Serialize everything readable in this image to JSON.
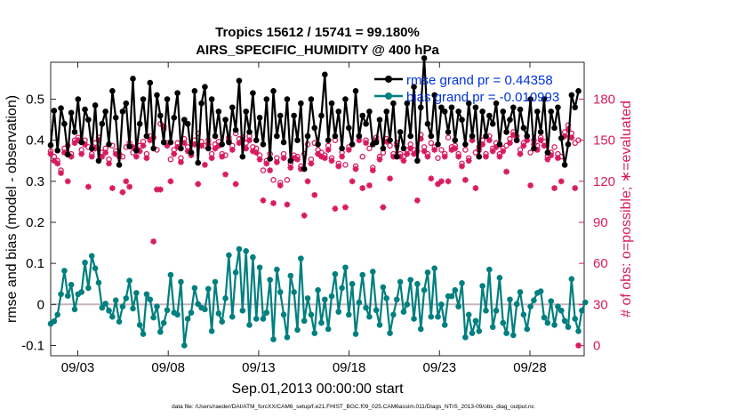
{
  "chart_data": {
    "type": "line",
    "title_line1": "Tropics 15612 / 15741 = 99.180%",
    "title_line2": "AIRS_SPECIFIC_HUMIDITY @ 400 hPa",
    "xlabel": "Sep.01,2013 00:00:00 start",
    "ylabel_left": "rmse and bias (model - observation)",
    "ylabel_right": "# of obs: o=possible; ∗=evaluated",
    "footer": "data file: /Users/raeder/DAI/ATM_forcXX/CAM6_setup/f.e21.FHIST_BGC.f09_025.CAM6assim.011/Diags_NTrS_2013-09/obs_diag_output.nc",
    "x_tick_labels": [
      "09/03",
      "09/08",
      "09/13",
      "09/18",
      "09/23",
      "09/28"
    ],
    "x_tick_values": [
      3,
      8,
      13,
      18,
      23,
      28
    ],
    "xlim": [
      1.5,
      31.0
    ],
    "y_left_ticks": [
      "0.5",
      "0.4",
      "0.3",
      "0.2",
      "0.1",
      "0",
      "-0.1"
    ],
    "y_left_values": [
      0.5,
      0.4,
      0.3,
      0.2,
      0.1,
      0,
      -0.1
    ],
    "ylim_left": [
      -0.125,
      0.59
    ],
    "y_right_ticks": [
      "180",
      "150",
      "120",
      "90",
      "60",
      "30",
      "0"
    ],
    "y_right_values": [
      180,
      150,
      120,
      90,
      60,
      30,
      0
    ],
    "ylim_right": [
      -7.5,
      207
    ],
    "legend": {
      "position": "top-right",
      "entries": [
        "rmse grand pr = 0.44358",
        "bias grand pr = -0.010993"
      ]
    },
    "colors": {
      "rmse": "#000000",
      "bias": "#007f7f",
      "obs": "#d81b60",
      "legend_text": "#0033dd",
      "zero_line": "#c8b4be"
    },
    "series": [
      {
        "name": "rmse",
        "values": [
          0.388,
          0.472,
          0.375,
          0.478,
          0.44,
          0.365,
          0.467,
          0.42,
          0.5,
          0.395,
          0.475,
          0.45,
          0.38,
          0.485,
          0.35,
          0.44,
          0.47,
          0.39,
          0.52,
          0.455,
          0.34,
          0.47,
          0.49,
          0.385,
          0.55,
          0.375,
          0.44,
          0.5,
          0.41,
          0.54,
          0.38,
          0.51,
          0.46,
          0.395,
          0.5,
          0.395,
          0.455,
          0.515,
          0.38,
          0.45,
          0.44,
          0.37,
          0.52,
          0.345,
          0.49,
          0.53,
          0.38,
          0.5,
          0.41,
          0.47,
          0.39,
          0.45,
          0.395,
          0.48,
          0.425,
          0.545,
          0.36,
          0.47,
          0.42,
          0.515,
          0.4,
          0.455,
          0.39,
          0.5,
          0.355,
          0.52,
          0.41,
          0.46,
          0.395,
          0.5,
          0.35,
          0.46,
          0.4,
          0.49,
          0.33,
          0.41,
          0.5,
          0.43,
          0.39,
          0.46,
          0.56,
          0.4,
          0.49,
          0.41,
          0.47,
          0.38,
          0.5,
          0.43,
          0.39,
          0.52,
          0.41,
          0.46,
          0.44,
          0.47,
          0.39,
          0.395,
          0.45,
          0.38,
          0.47,
          0.4,
          0.49,
          0.36,
          0.42,
          0.38,
          0.49,
          0.41,
          0.53,
          0.35,
          0.48,
          0.6,
          0.44,
          0.41,
          0.51,
          0.39,
          0.48,
          0.47,
          0.42,
          0.48,
          0.4,
          0.47,
          0.45,
          0.39,
          0.49,
          0.41,
          0.48,
          0.36,
          0.47,
          0.41,
          0.46,
          0.44,
          0.49,
          0.39,
          0.47,
          0.42,
          0.45,
          0.48,
          0.4,
          0.475,
          0.43,
          0.41,
          0.5,
          0.38,
          0.47,
          0.42,
          0.5,
          0.37,
          0.47,
          0.43,
          0.48,
          0.405,
          0.34,
          0.39,
          0.51,
          0.48,
          0.52
        ],
        "x_start": 1.5,
        "x_step": 0.1895
      },
      {
        "name": "bias",
        "values": [
          -0.047,
          -0.041,
          -0.025,
          0.025,
          0.082,
          0.021,
          0.048,
          -0.012,
          0.025,
          0.03,
          0.102,
          0.04,
          0.118,
          0.088,
          0.053,
          -0.008,
          0.002,
          -0.015,
          -0.03,
          0.01,
          -0.042,
          -0.005,
          0.015,
          0.058,
          -0.01,
          0.028,
          -0.05,
          -0.072,
          0.025,
          0.012,
          -0.032,
          -0.005,
          -0.067,
          -0.045,
          -0.014,
          0.072,
          -0.02,
          -0.025,
          0.055,
          -0.1,
          -0.035,
          -0.02,
          0.04,
          0.001,
          -0.008,
          -0.012,
          0.038,
          -0.065,
          0.055,
          -0.022,
          -0.042,
          0.015,
          0.12,
          -0.03,
          0.078,
          0.135,
          -0.015,
          0.13,
          -0.05,
          0.115,
          -0.035,
          0.09,
          -0.035,
          -0.02,
          0.06,
          -0.085,
          0.085,
          0.03,
          -0.025,
          -0.08,
          0.07,
          0.03,
          -0.062,
          0.112,
          -0.04,
          0.015,
          -0.025,
          -0.07,
          0.035,
          -0.045,
          0.012,
          -0.06,
          0.02,
          0.074,
          -0.018,
          0.04,
          0.09,
          -0.025,
          0.05,
          -0.072,
          0.005,
          0.072,
          -0.008,
          -0.03,
          0.08,
          -0.014,
          -0.05,
          0.042,
          0.015,
          -0.07,
          -0.025,
          0.012,
          0.055,
          -0.018,
          0.0,
          0.06,
          -0.035,
          0.05,
          -0.06,
          0.035,
          0.078,
          -0.03,
          0.088,
          -0.03,
          0.0,
          -0.05,
          0.02,
          0.02,
          0.035,
          -0.005,
          0.052,
          -0.08,
          -0.025,
          -0.07,
          -0.04,
          -0.065,
          0.045,
          -0.015,
          0.085,
          -0.055,
          -0.015,
          0.065,
          -0.045,
          -0.07,
          0.012,
          -0.075,
          0.001,
          0.03,
          -0.025,
          -0.06,
          -0.005,
          0.01,
          0.028,
          0.032,
          -0.032,
          -0.045,
          0.008,
          -0.05,
          -0.005,
          -0.015,
          -0.04,
          -0.055,
          0.062,
          -0.035,
          -0.065,
          -0.015,
          0.005
        ],
        "x_start": 1.5,
        "x_step": 0.1895
      },
      {
        "name": "obs_possible",
        "values": [
          142,
          138,
          135,
          128,
          144,
          146,
          140,
          150,
          152,
          143,
          150,
          145,
          140,
          148,
          152,
          141,
          144,
          136,
          146,
          142,
          140,
          138,
          145,
          148,
          141,
          144,
          146,
          149,
          140,
          153,
          152,
          143,
          162,
          158,
          148,
          136,
          143,
          148,
          137,
          151,
          145,
          141,
          150,
          155,
          149,
          146,
          150,
          140,
          147,
          149,
          140,
          139,
          152,
          146,
          155,
          151,
          152,
          148,
          153,
          145,
          144,
          139,
          128,
          135,
          140,
          121,
          137,
          119,
          140,
          121,
          133,
          139,
          138,
          131,
          140,
          147,
          136,
          148,
          143,
          141,
          139,
          146,
          137,
          150,
          133,
          141,
          132,
          145,
          147,
          131,
          153,
          138,
          150,
          144,
          130,
          152,
          138,
          141,
          151,
          146,
          140,
          148,
          140,
          138,
          143,
          147,
          143,
          142,
          154,
          145,
          140,
          148,
          145,
          137,
          143,
          140,
          152,
          145,
          146,
          140,
          133,
          143,
          137,
          153,
          141,
          145,
          150,
          140,
          153,
          144,
          148,
          140,
          144,
          146,
          151,
          156,
          153,
          143,
          148,
          153,
          141,
          150,
          146,
          152,
          149,
          138,
          141,
          145,
          140,
          138,
          156,
          161,
          155,
          148,
          150
        ],
        "x_start": 1.5,
        "x_step": 0.1895
      },
      {
        "name": "obs_evaluated",
        "values": [
          140,
          135,
          133,
          126,
          141,
          120,
          138,
          148,
          150,
          140,
          147,
          116,
          138,
          144,
          150,
          138,
          141,
          133,
          115,
          140,
          138,
          112,
          120,
          116,
          145,
          138,
          142,
          146,
          137,
          150,
          76,
          114,
          114,
          160,
          146,
          120,
          140,
          145,
          134,
          148,
          142,
          139,
          147,
          118,
          146,
          132,
          147,
          137,
          144,
          146,
          138,
          125,
          150,
          143,
          118,
          148,
          150,
          144,
          150,
          142,
          141,
          136,
          106,
          133,
          128,
          104,
          134,
          117,
          137,
          103,
          130,
          137,
          136,
          129,
          95,
          120,
          133,
          110,
          140,
          138,
          137,
          143,
          135,
          100,
          131,
          138,
          101,
          143,
          120,
          129,
          150,
          115,
          148,
          117,
          128,
          150,
          136,
          101,
          149,
          122,
          138,
          146,
          138,
          135,
          140,
          144,
          140,
          106,
          151,
          142,
          138,
          122,
          143,
          118,
          120,
          138,
          120,
          143,
          144,
          138,
          131,
          121,
          135,
          150,
          115,
          143,
          147,
          138,
          150,
          142,
          145,
          138,
          142,
          127,
          148,
          154,
          150,
          140,
          146,
          150,
          117,
          147,
          143,
          150,
          146,
          136,
          139,
          115,
          137,
          120,
          153,
          158,
          152,
          115,
          0
        ],
        "x_start": 1.5,
        "x_step": 0.1895
      }
    ]
  }
}
